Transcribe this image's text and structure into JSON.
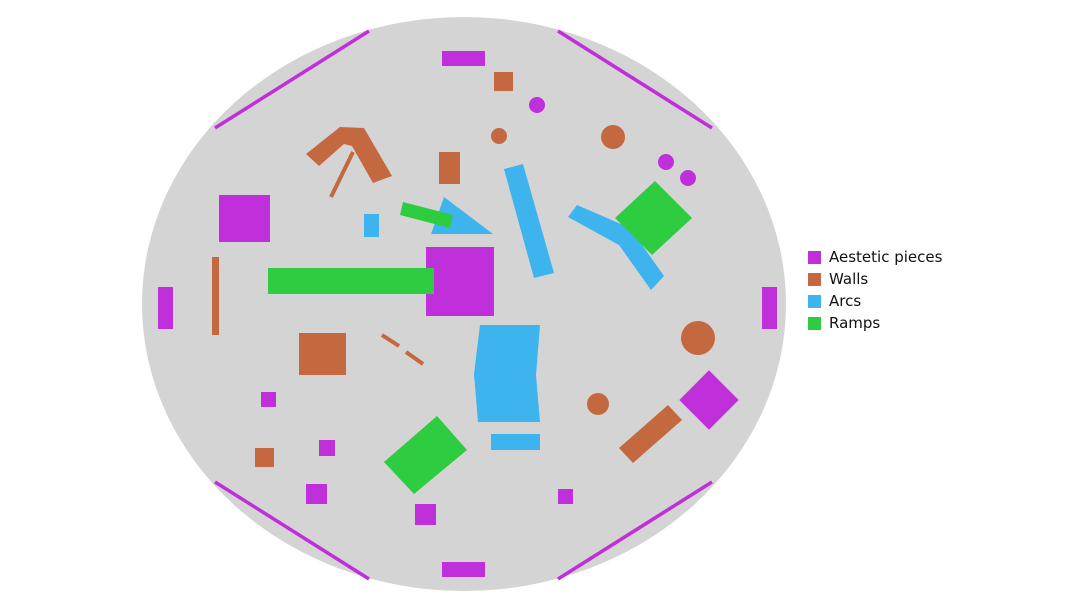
{
  "colors": {
    "arena": "#d4d4d4",
    "aesthetic": "#bf30db",
    "walls": "#c46840",
    "arcs": "#3db4ee",
    "ramps": "#2ecc40"
  },
  "legend": {
    "items": [
      {
        "label": "Aestetic pieces",
        "color": "#bf30db"
      },
      {
        "label": "Walls",
        "color": "#c46840"
      },
      {
        "label": "Arcs",
        "color": "#3db4ee"
      },
      {
        "label": "Ramps",
        "color": "#2ecc40"
      }
    ]
  }
}
